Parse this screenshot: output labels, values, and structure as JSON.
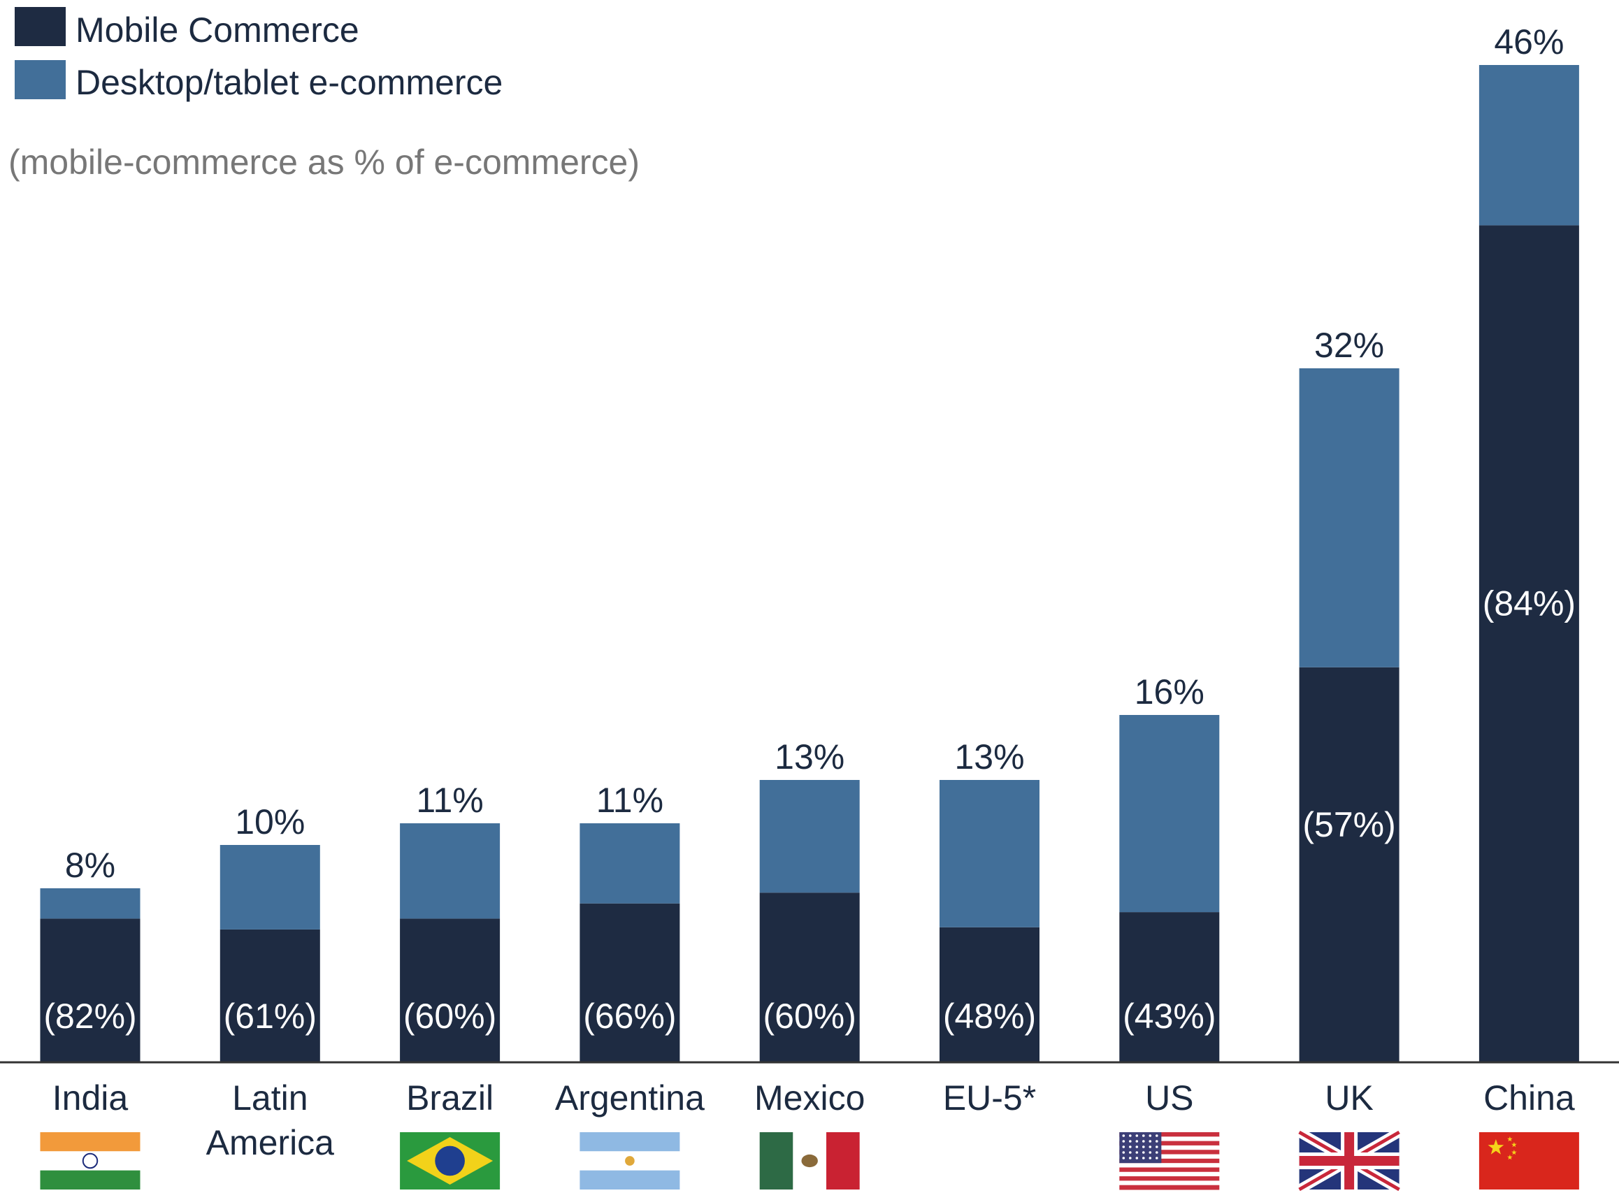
{
  "legend": {
    "mobile": "Mobile Commerce",
    "desktop": "Desktop/tablet e-commerce"
  },
  "subtitle": "(mobile-commerce as % of e-commerce)",
  "colors": {
    "mobile": "#1e2b42",
    "desktop": "#426f99",
    "text": "#1c2a40",
    "subtitle": "#777777",
    "axis": "#333333"
  },
  "chart_data": {
    "type": "bar",
    "stacked": true,
    "categories": [
      "India",
      "Latin America",
      "Brazil",
      "Argentina",
      "Mexico",
      "EU-5*",
      "US",
      "UK",
      "China"
    ],
    "category_lines": [
      [
        "India"
      ],
      [
        "Latin",
        "America"
      ],
      [
        "Brazil"
      ],
      [
        "Argentina"
      ],
      [
        "Mexico"
      ],
      [
        "EU-5*"
      ],
      [
        "US"
      ],
      [
        "UK"
      ],
      [
        "China"
      ]
    ],
    "total_labels": [
      "8%",
      "10%",
      "11%",
      "11%",
      "13%",
      "13%",
      "16%",
      "32%",
      "46%"
    ],
    "totals": [
      8,
      10,
      11,
      11,
      13,
      13,
      16,
      32,
      46
    ],
    "mobile_share_labels": [
      "(82%)",
      "(61%)",
      "(60%)",
      "(66%)",
      "(60%)",
      "(48%)",
      "(43%)",
      "(57%)",
      "(84%)"
    ],
    "series": [
      {
        "name": "Mobile Commerce",
        "values": [
          6.6,
          6.1,
          6.6,
          7.3,
          7.8,
          6.2,
          6.9,
          18.2,
          38.6
        ]
      },
      {
        "name": "Desktop/tablet e-commerce",
        "values": [
          1.4,
          3.9,
          4.4,
          3.7,
          5.2,
          6.8,
          9.1,
          13.8,
          7.4
        ]
      }
    ],
    "flags": [
      "india-flag",
      "",
      "brazil-flag",
      "argentina-flag",
      "mexico-flag",
      "",
      "us-flag",
      "uk-flag",
      "china-flag"
    ],
    "ylim": [
      0,
      46
    ],
    "grid": false,
    "legend_position": "top-left"
  }
}
